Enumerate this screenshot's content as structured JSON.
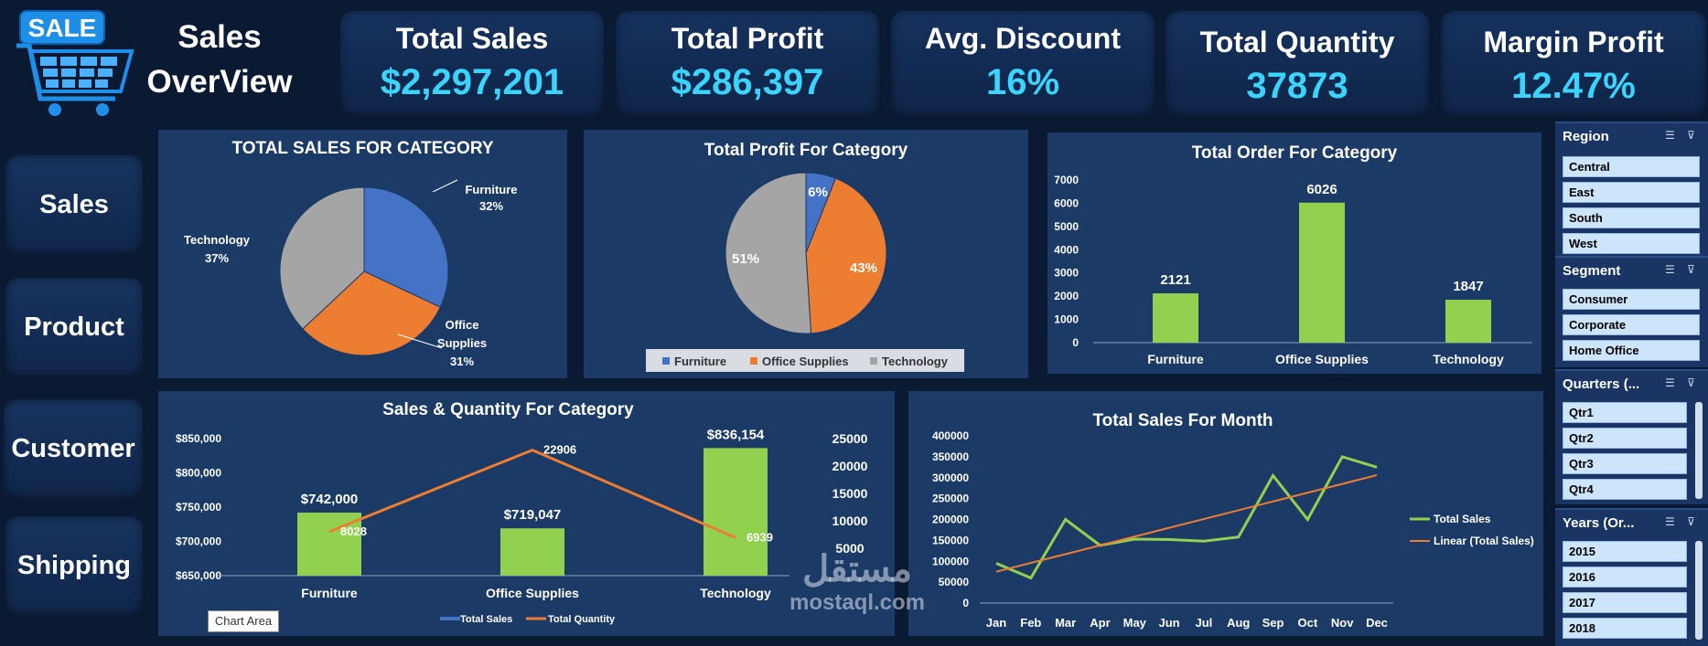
{
  "header": {
    "title_line1": "Sales",
    "title_line2": "OverView",
    "logo_text": "SALE"
  },
  "kpis": [
    {
      "label": "Total Sales",
      "value": "$2,297,201"
    },
    {
      "label": "Total Profit",
      "value": "$286,397"
    },
    {
      "label": "Avg. Discount",
      "value": "16%"
    },
    {
      "label": "Total Quantity",
      "value": "37873"
    },
    {
      "label": "Margin Profit",
      "value": "12.47%"
    }
  ],
  "nav": {
    "items": [
      "Sales",
      "Product",
      "Customer",
      "Shipping"
    ]
  },
  "tooltip": "Chart Area",
  "watermark": {
    "arabic": "مستقل",
    "latin": "mostaql.com"
  },
  "slicers": {
    "region": {
      "title": "Region",
      "items": [
        "Central",
        "East",
        "South",
        "West"
      ]
    },
    "segment": {
      "title": "Segment",
      "items": [
        "Consumer",
        "Corporate",
        "Home Office"
      ]
    },
    "quarters": {
      "title": "Quarters (...",
      "items": [
        "Qtr1",
        "Qtr2",
        "Qtr3",
        "Qtr4"
      ]
    },
    "years": {
      "title": "Years (Or...",
      "items": [
        "2015",
        "2016",
        "2017",
        "2018"
      ]
    }
  },
  "colors": {
    "furniture": "#4472c4",
    "office": "#ed7d31",
    "technology": "#a5a5a5",
    "green": "#92d050",
    "accent": "#3ad4ff"
  },
  "chart_data": [
    {
      "type": "pie",
      "title": "TOTAL SALES FOR CATEGORY",
      "categories": [
        "Furniture",
        "Office Supplies",
        "Technology"
      ],
      "values": [
        32,
        31,
        37
      ],
      "labels": [
        {
          "name": "Furniture",
          "pct": "32%"
        },
        {
          "name1": "Office",
          "name2": "Supplies",
          "pct": "31%"
        },
        {
          "name": "Technology",
          "pct": "37%"
        }
      ]
    },
    {
      "type": "pie",
      "title": "Total Profit For Category",
      "categories": [
        "Furniture",
        "Office Supplies",
        "Technology"
      ],
      "values": [
        6,
        43,
        51
      ],
      "labels": [
        "6%",
        "43%",
        "51%"
      ],
      "legend": [
        "Furniture",
        "Office Supplies",
        "Technology"
      ],
      "legend_position": "bottom"
    },
    {
      "type": "bar",
      "title": "Total Order For Category",
      "categories": [
        "Furniture",
        "Office Supplies",
        "Technology"
      ],
      "values": [
        2121,
        6026,
        1847
      ],
      "ylim": [
        0,
        7000
      ],
      "yticks": [
        0,
        1000,
        2000,
        3000,
        4000,
        5000,
        6000,
        7000
      ]
    },
    {
      "type": "bar",
      "title": "Sales & Quantity For Category",
      "categories": [
        "Furniture",
        "Office Supplies",
        "Technology"
      ],
      "series": [
        {
          "name": "Total Sales",
          "values": [
            742000,
            719047,
            836154
          ],
          "labels": [
            "$742,000",
            "$719,047",
            "$836,154"
          ]
        },
        {
          "name": "Total Quantity",
          "values": [
            8028,
            22906,
            6939
          ],
          "labels": [
            "8028",
            "22906",
            "6939"
          ]
        }
      ],
      "ylim": [
        650000,
        850000
      ],
      "yticks": [
        "$650,000",
        "$700,000",
        "$750,000",
        "$800,000",
        "$850,000"
      ],
      "ylim2": [
        0,
        25000
      ],
      "yticks2": [
        "5000",
        "10000",
        "15000",
        "20000",
        "25000"
      ],
      "legend_position": "bottom"
    },
    {
      "type": "line",
      "title": "Total Sales For Month",
      "categories": [
        "Jan",
        "Feb",
        "Mar",
        "Apr",
        "May",
        "Jun",
        "Jul",
        "Aug",
        "Sep",
        "Oct",
        "Nov",
        "Dec"
      ],
      "series": [
        {
          "name": "Total Sales",
          "values": [
            95000,
            60000,
            200000,
            138000,
            153000,
            152000,
            148000,
            158000,
            305000,
            200000,
            350000,
            325000
          ]
        },
        {
          "name": "Linear (Total Sales)",
          "values": [
            75000,
            96000,
            117000,
            138000,
            159000,
            180000,
            201000,
            222000,
            243000,
            264000,
            285000,
            306000
          ]
        }
      ],
      "ylim": [
        0,
        400000
      ],
      "yticks": [
        "0",
        "50000",
        "100000",
        "150000",
        "200000",
        "250000",
        "300000",
        "350000",
        "400000"
      ],
      "legend_position": "right"
    }
  ]
}
